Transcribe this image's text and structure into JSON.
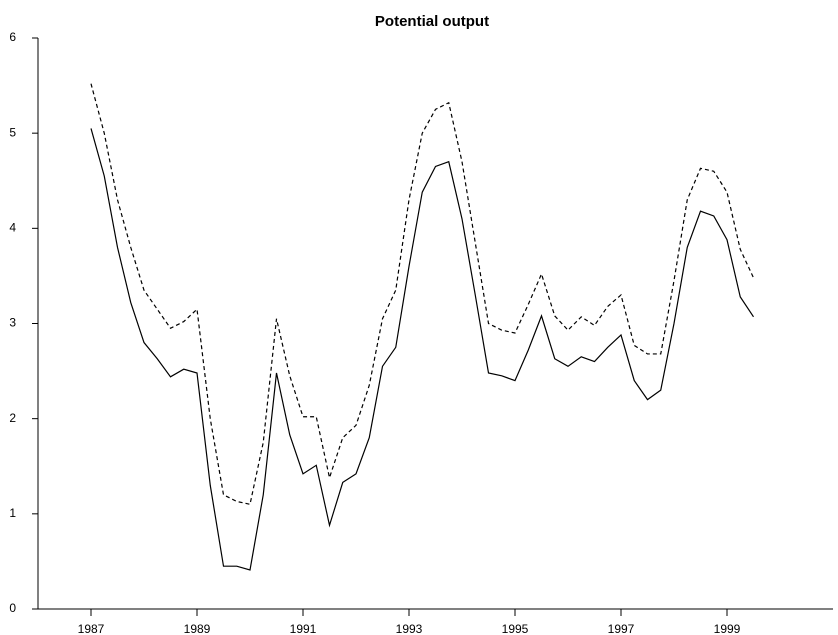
{
  "chart_data": {
    "type": "line",
    "title": "Potential output",
    "x": [
      1987,
      1987.25,
      1987.5,
      1987.75,
      1988,
      1988.25,
      1988.5,
      1988.75,
      1989,
      1989.25,
      1989.5,
      1989.75,
      1990,
      1990.25,
      1990.5,
      1990.75,
      1991,
      1991.25,
      1991.5,
      1991.75,
      1992,
      1992.25,
      1992.5,
      1992.75,
      1993,
      1993.25,
      1993.5,
      1993.75,
      1994,
      1994.25,
      1994.5,
      1994.75,
      1995,
      1995.25,
      1995.5,
      1995.75,
      1996,
      1996.25,
      1996.5,
      1996.75,
      1997,
      1997.25,
      1997.5,
      1997.75,
      1998,
      1998.25,
      1998.5,
      1998.75,
      1999,
      1999.25,
      1999.5
    ],
    "series": [
      {
        "color": "#000000",
        "dash": false,
        "values": [
          5.05,
          4.55,
          3.8,
          3.22,
          2.8,
          2.63,
          2.44,
          2.52,
          2.48,
          1.3,
          0.45,
          0.45,
          0.41,
          1.2,
          2.48,
          1.83,
          1.42,
          1.51,
          0.88,
          1.33,
          1.42,
          1.8,
          2.55,
          2.75,
          3.6,
          4.38,
          4.65,
          4.7,
          4.1,
          3.3,
          2.48,
          2.45,
          2.4,
          2.72,
          3.08,
          2.63,
          2.55,
          2.65,
          2.6,
          2.75,
          2.88,
          2.4,
          2.2,
          2.3,
          3.0,
          3.8,
          4.18,
          4.13,
          3.88,
          3.28,
          3.07
        ]
      },
      {
        "color": "#000000",
        "dash": true,
        "values": [
          5.52,
          5.0,
          4.3,
          3.8,
          3.35,
          3.15,
          2.95,
          3.02,
          3.15,
          2.0,
          1.2,
          1.13,
          1.1,
          1.75,
          3.05,
          2.45,
          2.02,
          2.02,
          1.38,
          1.8,
          1.93,
          2.35,
          3.05,
          3.35,
          4.3,
          5.0,
          5.25,
          5.32,
          4.7,
          3.85,
          3.0,
          2.93,
          2.9,
          3.2,
          3.52,
          3.08,
          2.93,
          3.07,
          2.98,
          3.18,
          3.3,
          2.77,
          2.68,
          2.68,
          3.45,
          4.3,
          4.63,
          4.6,
          4.38,
          3.78,
          3.48
        ]
      }
    ],
    "xlim": [
      1986,
      2001
    ],
    "xticks": [
      1987,
      1989,
      1991,
      1993,
      1995,
      1997,
      1999
    ],
    "ylim": [
      0,
      6
    ],
    "yticks": [
      0,
      1,
      2,
      3,
      4,
      5,
      6
    ]
  }
}
